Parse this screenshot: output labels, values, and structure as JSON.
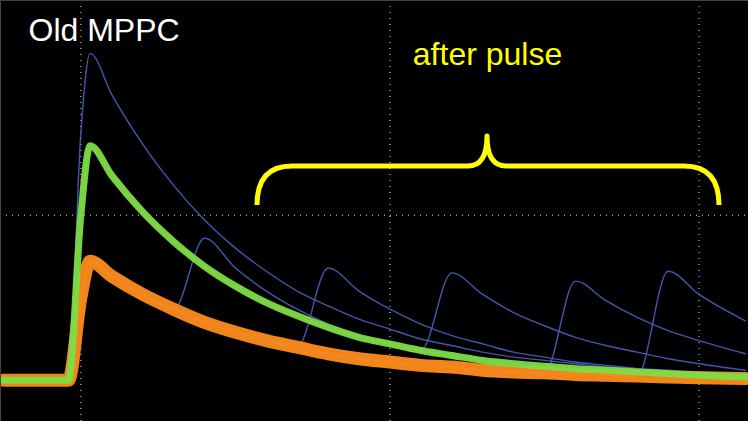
{
  "chart_data": {
    "type": "line",
    "title": "Old MPPC",
    "annotations": [
      {
        "text": "after pulse",
        "color": "#ffff00"
      }
    ],
    "x": [
      -2.5,
      -0.4,
      0,
      0.3,
      1,
      2,
      3,
      4,
      5,
      6,
      7,
      8,
      9,
      10,
      11,
      12,
      13,
      14,
      15,
      16,
      17,
      18,
      19,
      20,
      21.5
    ],
    "series": [
      {
        "color": "#4a5fc0",
        "values": [
          0,
          0,
          15,
          19.8,
          17.3,
          14.3,
          11.8,
          9.7,
          8.0,
          6.6,
          5.4,
          4.5,
          3.7,
          3.1,
          2.5,
          2.1,
          1.7,
          1.4,
          1.2,
          1.0,
          0.8,
          0.7,
          0.6,
          0.5,
          0.3
        ]
      },
      {
        "color": "#4a5fc0",
        "values": [
          0,
          0,
          5,
          7.2,
          6.3,
          5.2,
          4.3,
          8.6,
          6.8,
          5.4,
          4.3,
          3.4,
          2.7,
          2.2,
          1.8,
          1.5,
          1.2,
          1.0,
          0.8,
          0.6,
          0.5,
          0.4,
          0.3,
          0.2,
          0.1
        ]
      },
      {
        "color": "#4a5fc0",
        "values": [
          0,
          0,
          5,
          7.2,
          6.3,
          5.2,
          4.3,
          3.5,
          2.9,
          2.4,
          2.0,
          6.8,
          5.4,
          4.3,
          3.4,
          2.7,
          2.2,
          1.7,
          1.4,
          1.1,
          0.9,
          0.7,
          0.5,
          0.4,
          0.2
        ]
      },
      {
        "color": "#4a5fc0",
        "values": [
          0,
          0,
          10,
          14.2,
          12.4,
          10.2,
          8.4,
          6.9,
          5.7,
          4.7,
          3.9,
          3.2,
          2.6,
          2.2,
          1.8,
          6.5,
          5.2,
          4.1,
          3.3,
          2.6,
          2.1,
          1.7,
          1.3,
          1.0,
          0.6
        ]
      },
      {
        "color": "#4a5fc0",
        "values": [
          0,
          0,
          5,
          7.2,
          6.3,
          5.2,
          4.3,
          3.5,
          2.9,
          2.4,
          2.0,
          1.6,
          1.3,
          1.1,
          0.9,
          0.8,
          0.6,
          0.5,
          0.45,
          6.0,
          4.8,
          3.8,
          3.0,
          2.4,
          1.6
        ]
      },
      {
        "color": "#4a5fc0",
        "values": [
          0,
          0,
          5,
          7.2,
          6.3,
          5.2,
          4.3,
          3.5,
          2.9,
          2.4,
          2.0,
          1.6,
          1.3,
          1.1,
          0.9,
          0.8,
          0.6,
          0.5,
          0.45,
          0.35,
          0.3,
          0.25,
          6.6,
          5.2,
          3.6
        ]
      },
      {
        "color": "#ff8c1a",
        "values": [
          0,
          0,
          5,
          7.2,
          6.3,
          5.2,
          4.3,
          3.5,
          2.9,
          2.4,
          2.0,
          1.6,
          1.3,
          1.1,
          0.9,
          0.8,
          0.6,
          0.5,
          0.45,
          0.35,
          0.3,
          0.25,
          0.2,
          0.15,
          0.1
        ]
      },
      {
        "color": "#7ddc45",
        "values": [
          0,
          0,
          10,
          14.2,
          12.4,
          10.2,
          8.4,
          6.9,
          5.7,
          4.7,
          3.9,
          3.2,
          2.6,
          2.2,
          1.8,
          1.5,
          1.2,
          1.0,
          0.85,
          0.7,
          0.6,
          0.5,
          0.4,
          0.3,
          0.2
        ]
      }
    ],
    "xlim": [
      -2.6,
      21.6
    ],
    "ylim": [
      -2.5,
      23
    ],
    "xticks": [
      0,
      10,
      20
    ],
    "yticks": [
      10
    ],
    "grid": true,
    "tick_labels": false
  }
}
